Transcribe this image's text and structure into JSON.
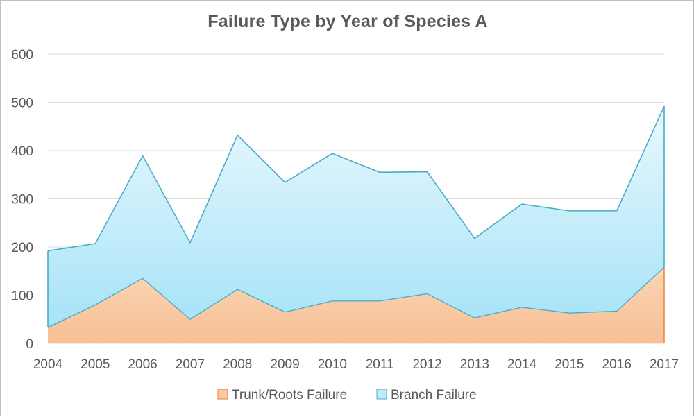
{
  "chart_data": {
    "type": "area",
    "stacked": true,
    "title": "Failure Type by Year of Species A",
    "categories": [
      "2004",
      "2005",
      "2006",
      "2007",
      "2008",
      "2009",
      "2010",
      "2011",
      "2012",
      "2013",
      "2014",
      "2015",
      "2016",
      "2017"
    ],
    "series": [
      {
        "name": "Trunk/Roots Failure",
        "values": [
          33,
          80,
          135,
          50,
          112,
          65,
          88,
          88,
          103,
          53,
          75,
          63,
          67,
          158
        ],
        "color": "#f4b183"
      },
      {
        "name": "Branch Failure",
        "values": [
          159,
          127,
          254,
          159,
          320,
          269,
          306,
          267,
          253,
          165,
          214,
          212,
          208,
          334
        ],
        "color": "#8fdcf5"
      }
    ],
    "ylim": [
      0,
      600
    ],
    "yticks": [
      0,
      100,
      200,
      300,
      400,
      500,
      600
    ],
    "grid": true,
    "legend": "bottom",
    "xlabel": "",
    "ylabel": ""
  }
}
